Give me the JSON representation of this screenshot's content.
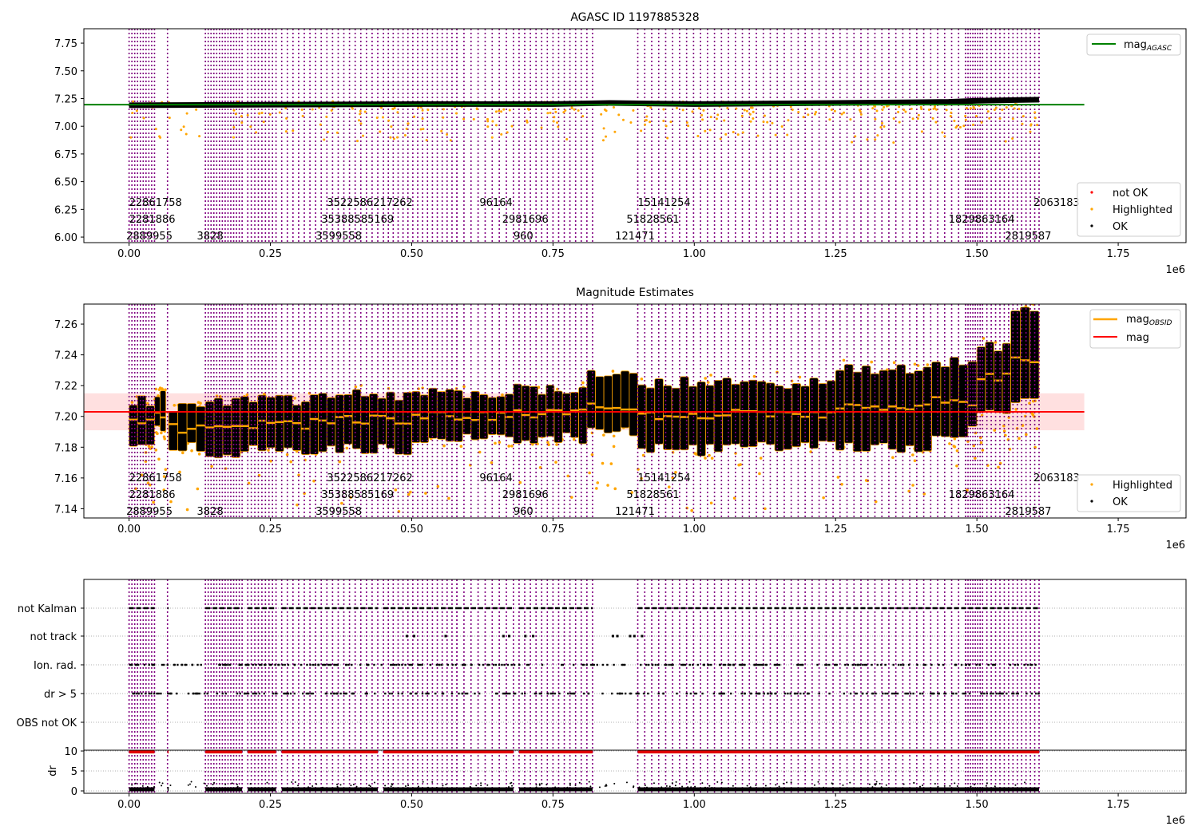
{
  "chart_data": [
    {
      "type": "scatter",
      "title": "AGASC ID 1197885328",
      "xlabel": "",
      "ylabel": "",
      "x_offset_label": "1e6",
      "xlim": [
        -0.08,
        1.87
      ],
      "ylim": [
        5.95,
        7.88
      ],
      "xticks": [
        0.0,
        0.25,
        0.5,
        0.75,
        1.0,
        1.25,
        1.5,
        1.75
      ],
      "xtick_labels": [
        "0.00",
        "0.25",
        "0.50",
        "0.75",
        "1.00",
        "1.25",
        "1.50",
        "1.75"
      ],
      "yticks": [
        6.0,
        6.25,
        6.5,
        6.75,
        7.0,
        7.25,
        7.5,
        7.75
      ],
      "ytick_labels": [
        "6.00",
        "6.25",
        "6.50",
        "6.75",
        "7.00",
        "7.25",
        "7.50",
        "7.75"
      ],
      "lines": [
        {
          "name": "mag_AGASC",
          "label_main": "mag",
          "label_sub": "AGASC",
          "color": "#008000",
          "y": 7.195,
          "x_range": [
            -0.08,
            1.69
          ]
        }
      ],
      "scatter_legend": [
        {
          "name": "not OK",
          "color": "#ff0000"
        },
        {
          "name": "Highlighted",
          "color": "#ffa500"
        },
        {
          "name": "OK",
          "color": "#000000"
        }
      ],
      "series_trend": {
        "x": [
          0.0,
          0.25,
          0.5,
          0.75,
          0.85,
          1.0,
          1.25,
          1.45,
          1.5,
          1.61
        ],
        "y": [
          7.19,
          7.195,
          7.2,
          7.2,
          7.21,
          7.2,
          7.21,
          7.22,
          7.23,
          7.24
        ]
      },
      "obsid_annotation_rows": [
        [
          "22861758",
          "3522586217262",
          "96164",
          "15141254",
          "2063183"
        ],
        [
          "2281886",
          "35388585169",
          "2981696",
          "51828561",
          "1829863164"
        ],
        [
          "2889955",
          "3828",
          "3599558",
          "960",
          "121471",
          "2819587"
        ]
      ]
    },
    {
      "type": "scatter",
      "title": "Magnitude Estimates",
      "xlabel": "",
      "ylabel": "",
      "x_offset_label": "1e6",
      "xlim": [
        -0.08,
        1.87
      ],
      "ylim": [
        7.134,
        7.273
      ],
      "xticks": [
        0.0,
        0.25,
        0.5,
        0.75,
        1.0,
        1.25,
        1.5,
        1.75
      ],
      "xtick_labels": [
        "0.00",
        "0.25",
        "0.50",
        "0.75",
        "1.00",
        "1.25",
        "1.50",
        "1.75"
      ],
      "yticks": [
        7.14,
        7.16,
        7.18,
        7.2,
        7.22,
        7.24,
        7.26
      ],
      "ytick_labels": [
        "7.14",
        "7.16",
        "7.18",
        "7.20",
        "7.22",
        "7.24",
        "7.26"
      ],
      "lines": [
        {
          "name": "mag_OBSID",
          "label_main": "mag",
          "label_sub": "OBSID",
          "color": "#ffa500"
        },
        {
          "name": "mag",
          "label_main": "mag",
          "label_sub": "",
          "color": "#ff0000",
          "y": 7.203,
          "band": [
            7.191,
            7.215
          ],
          "x_range": [
            -0.08,
            1.69
          ]
        }
      ],
      "scatter_legend": [
        {
          "name": "Highlighted",
          "color": "#ffa500"
        },
        {
          "name": "OK",
          "color": "#000000"
        }
      ],
      "segments": [
        {
          "x0": 0.0,
          "x1": 0.045,
          "lo": 7.18,
          "hi": 7.21,
          "mean": 7.195
        },
        {
          "x0": 0.045,
          "x1": 0.065,
          "lo": 7.19,
          "hi": 7.216,
          "mean": 7.202
        },
        {
          "x0": 0.07,
          "x1": 0.135,
          "lo": 7.179,
          "hi": 7.206,
          "mean": 7.192
        },
        {
          "x0": 0.135,
          "x1": 0.32,
          "lo": 7.177,
          "hi": 7.21,
          "mean": 7.195
        },
        {
          "x0": 0.32,
          "x1": 0.5,
          "lo": 7.178,
          "hi": 7.214,
          "mean": 7.198
        },
        {
          "x0": 0.5,
          "x1": 0.68,
          "lo": 7.185,
          "hi": 7.215,
          "mean": 7.2
        },
        {
          "x0": 0.68,
          "x1": 0.81,
          "lo": 7.186,
          "hi": 7.218,
          "mean": 7.202
        },
        {
          "x0": 0.81,
          "x1": 0.9,
          "lo": 7.19,
          "hi": 7.226,
          "mean": 7.207
        },
        {
          "x0": 0.9,
          "x1": 1.05,
          "lo": 7.178,
          "hi": 7.222,
          "mean": 7.2
        },
        {
          "x0": 1.05,
          "x1": 1.25,
          "lo": 7.18,
          "hi": 7.222,
          "mean": 7.202
        },
        {
          "x0": 1.25,
          "x1": 1.42,
          "lo": 7.18,
          "hi": 7.23,
          "mean": 7.205
        },
        {
          "x0": 1.42,
          "x1": 1.5,
          "lo": 7.19,
          "hi": 7.236,
          "mean": 7.21
        },
        {
          "x0": 1.5,
          "x1": 1.56,
          "lo": 7.205,
          "hi": 7.245,
          "mean": 7.225
        },
        {
          "x0": 1.56,
          "x1": 1.61,
          "lo": 7.21,
          "hi": 7.27,
          "mean": 7.238
        }
      ],
      "obsid_annotation_rows": [
        [
          "22861758",
          "3522586217262",
          "96164",
          "15141254",
          "2063183"
        ],
        [
          "2281886",
          "35388585169",
          "2981696",
          "51828561",
          "1829863164"
        ],
        [
          "2889955",
          "3828",
          "3599558",
          "960",
          "121471",
          "2819587"
        ]
      ]
    },
    {
      "type": "scatter",
      "title": "",
      "xlabel": "",
      "x_offset_label": "1e6",
      "xlim": [
        -0.08,
        1.87
      ],
      "xticks": [
        0.0,
        0.25,
        0.5,
        0.75,
        1.0,
        1.25,
        1.5,
        1.75
      ],
      "xtick_labels": [
        "0.00",
        "0.25",
        "0.50",
        "0.75",
        "1.00",
        "1.25",
        "1.50",
        "1.75"
      ],
      "flag_rows": [
        "not Kalman",
        "not track",
        "Ion. rad.",
        "dr > 5",
        "OBS not OK"
      ],
      "dr_axis": {
        "ylabel": "dr",
        "yticks": [
          0,
          5,
          10
        ],
        "ytick_labels": [
          "0",
          "5",
          "10"
        ],
        "ylim": [
          0,
          10.3
        ]
      }
    }
  ],
  "obsid_boundaries_color": "#800080",
  "obsid_clusters": [
    [
      0.0,
      0.045,
      10
    ],
    [
      0.068,
      0.068,
      1
    ],
    [
      0.135,
      0.2,
      14
    ],
    [
      0.21,
      0.26,
      9
    ],
    [
      0.27,
      0.44,
      18
    ],
    [
      0.45,
      0.58,
      16
    ],
    [
      0.58,
      0.68,
      9
    ],
    [
      0.69,
      0.82,
      14
    ],
    [
      0.9,
      1.48,
      48
    ],
    [
      1.48,
      1.51,
      8
    ],
    [
      1.51,
      1.61,
      14
    ]
  ]
}
